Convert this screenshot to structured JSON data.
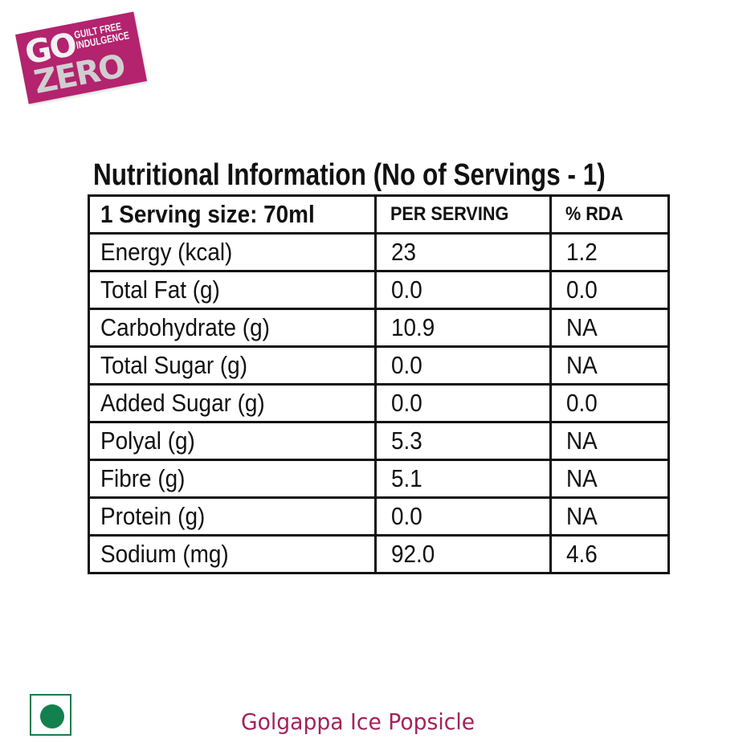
{
  "badge": {
    "go": "GO",
    "zero": "ZERO",
    "tagline_line1": "GUILT FREE",
    "tagline_line2": "INDULGENCE",
    "color": "#b3236e"
  },
  "title": "Nutritional Information (No of Servings - 1)",
  "table": {
    "header": {
      "serving_size": "1 Serving size: 70ml",
      "per_serving": "PER SERVING",
      "rda": "% RDA"
    },
    "rows": [
      {
        "nutrient": "Energy (kcal)",
        "per_serving": "23",
        "rda": "1.2"
      },
      {
        "nutrient": "Total Fat (g)",
        "per_serving": "0.0",
        "rda": "0.0"
      },
      {
        "nutrient": "Carbohydrate (g)",
        "per_serving": "10.9",
        "rda": "NA"
      },
      {
        "nutrient": "Total Sugar (g)",
        "per_serving": "0.0",
        "rda": "NA"
      },
      {
        "nutrient": "Added Sugar (g)",
        "per_serving": "0.0",
        "rda": "0.0"
      },
      {
        "nutrient": "Polyal (g)",
        "per_serving": "5.3",
        "rda": "NA"
      },
      {
        "nutrient": "Fibre (g)",
        "per_serving": "5.1",
        "rda": "NA"
      },
      {
        "nutrient": "Protein (g)",
        "per_serving": "0.0",
        "rda": "NA"
      },
      {
        "nutrient": "Sodium (mg)",
        "per_serving": "92.0",
        "rda": "4.6"
      }
    ]
  },
  "veg_symbol": {
    "icon": "veg-mark-icon",
    "color": "#12804f"
  },
  "product_name": "Golgappa Ice Popsicle",
  "product_color": "#a3225c"
}
